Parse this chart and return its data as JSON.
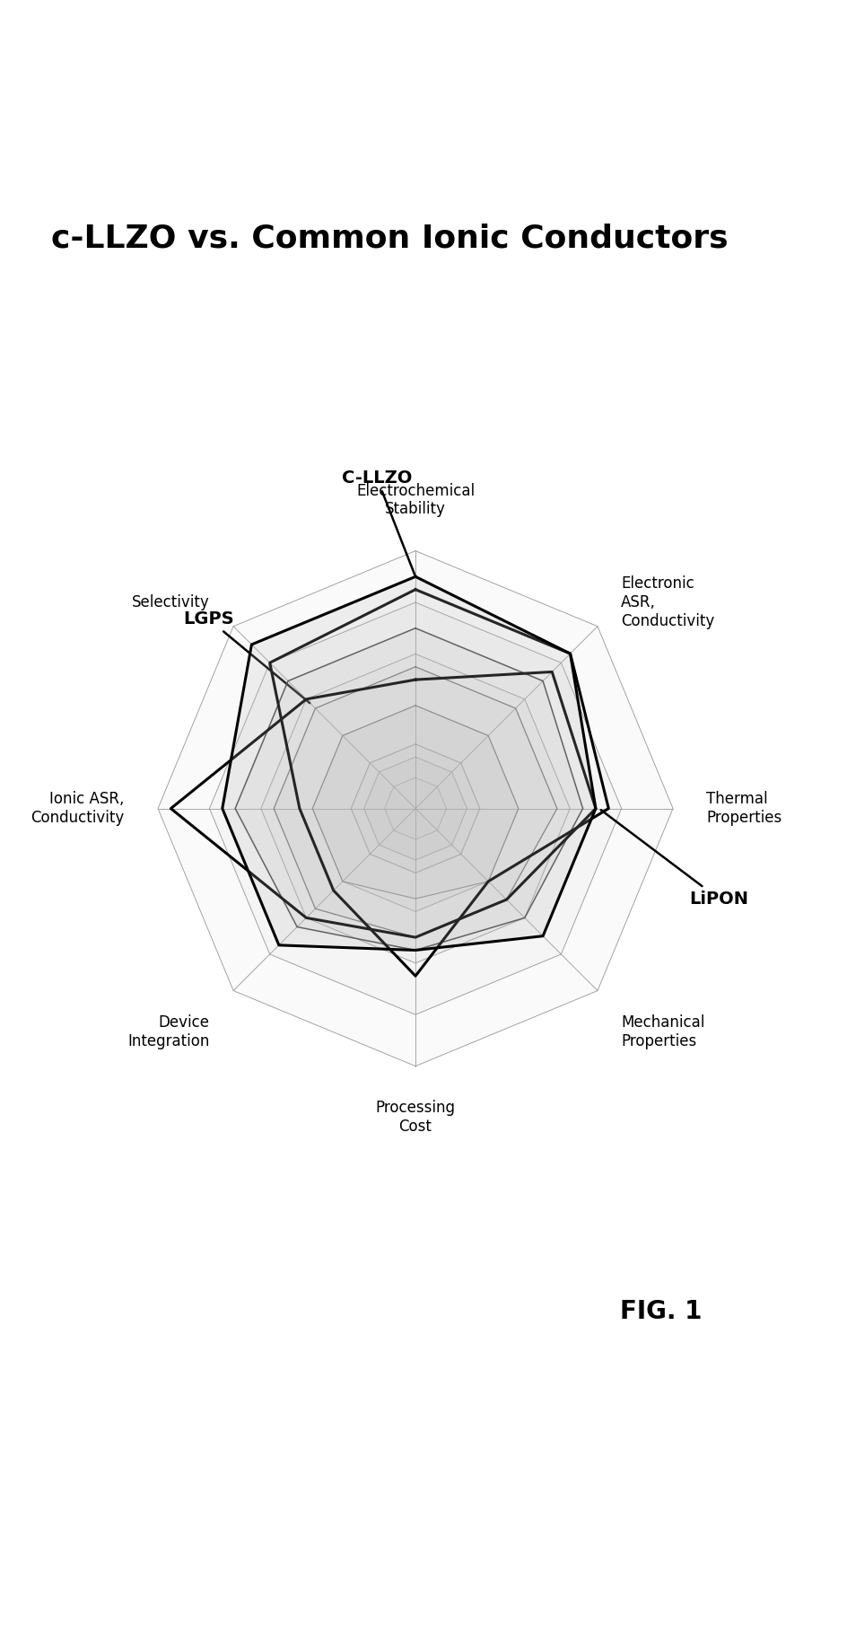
{
  "title": "c-LLZO vs. Common Ionic Conductors",
  "fig_label": "FIG. 1",
  "categories": [
    "Electrochemical\nStability",
    "Electronic\nASR,\nConductivity",
    "Thermal\nProperties",
    "Mechanical\nProperties",
    "Processing\nCost",
    "Device\nIntegration",
    "Ionic ASR,\nConductivity",
    "Selectivity"
  ],
  "N": 8,
  "max_val": 10,
  "background_color": "#ffffff",
  "fill_color": "#bbbbbb",
  "title_fontsize": 26,
  "label_fontsize": 12,
  "annotation_fontsize": 14,
  "figsize": [
    9.45,
    18.38
  ],
  "series_C_LLZO": [
    9.0,
    8.5,
    7.0,
    7.0,
    5.5,
    7.5,
    7.5,
    9.0
  ],
  "series_LGPS": [
    5.0,
    7.5,
    7.0,
    5.0,
    5.0,
    6.0,
    9.5,
    6.0
  ],
  "series_LiPON": [
    8.5,
    8.5,
    7.5,
    4.0,
    6.5,
    4.5,
    4.5,
    8.0
  ],
  "series_mat4": [
    7.0,
    7.0,
    6.5,
    6.0,
    5.5,
    6.5,
    7.0,
    7.0
  ],
  "series_mat5": [
    5.5,
    5.5,
    5.5,
    5.0,
    5.0,
    5.5,
    5.5,
    5.5
  ],
  "series_mat6": [
    4.0,
    4.0,
    4.0,
    4.0,
    3.5,
    4.0,
    4.0,
    4.0
  ],
  "series_mat7": [
    2.5,
    2.5,
    2.5,
    2.5,
    2.5,
    2.5,
    2.5,
    2.5
  ],
  "series_mat8": [
    1.2,
    1.2,
    1.2,
    1.2,
    1.2,
    1.2,
    1.2,
    1.2
  ]
}
